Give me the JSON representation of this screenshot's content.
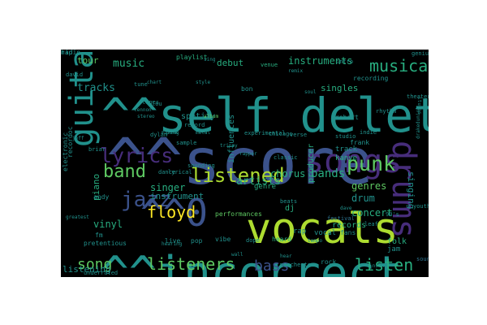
{
  "colors": {
    "figure_bg": "#ffffff",
    "cloud_bg": "#000000",
    "palette": {
      "purple": "#472d7b",
      "indigo": "#3b528b",
      "blue": "#2c728e",
      "teal": "#21918c",
      "green": "#28ae80",
      "lime": "#5ec962",
      "yellowgreen": "#addc30",
      "yellow": "#fde725"
    }
  },
  "words": [
    {
      "text": "^^score",
      "color": "indigo"
    },
    {
      "text": "^^self deletes",
      "color": "teal"
    },
    {
      "text": "^^incorrect",
      "color": "teal"
    },
    {
      "text": "vocals",
      "color": "yellowgreen"
    },
    {
      "text": "^^0",
      "color": "indigo"
    },
    {
      "text": "drums",
      "color": "purple"
    },
    {
      "text": "guitar",
      "color": "teal"
    },
    {
      "text": "songs",
      "color": "purple"
    },
    {
      "text": "lyrics",
      "color": "purple"
    },
    {
      "text": "listened",
      "color": "yellowgreen"
    },
    {
      "text": "punk",
      "color": "lime"
    },
    {
      "text": "jazz",
      "color": "indigo"
    },
    {
      "text": "band",
      "color": "lime"
    },
    {
      "text": "floyd",
      "color": "yellow"
    },
    {
      "text": "listeners",
      "color": "lime"
    },
    {
      "text": "song",
      "color": "lime"
    },
    {
      "text": "listen",
      "color": "green"
    },
    {
      "text": "bass",
      "color": "indigo"
    },
    {
      "text": "music",
      "color": "green"
    },
    {
      "text": "musical",
      "color": "green"
    },
    {
      "text": "instruments",
      "color": "green"
    },
    {
      "text": "bands",
      "color": "green"
    },
    {
      "text": "chorus",
      "color": "green"
    },
    {
      "text": "artists",
      "color": "green"
    },
    {
      "text": "singer",
      "color": "green"
    },
    {
      "text": "concert",
      "color": "green"
    },
    {
      "text": "drum",
      "color": "teal"
    },
    {
      "text": "genres",
      "color": "lime"
    },
    {
      "text": "singing",
      "color": "teal"
    },
    {
      "text": "spotify",
      "color": "teal"
    },
    {
      "text": "tracks",
      "color": "teal"
    },
    {
      "text": "tour",
      "color": "lime"
    },
    {
      "text": "debut",
      "color": "green"
    },
    {
      "text": "piano",
      "color": "green"
    },
    {
      "text": "vinyl",
      "color": "green"
    },
    {
      "text": "listening",
      "color": "teal"
    },
    {
      "text": "records",
      "color": "green"
    },
    {
      "text": "producer",
      "color": "green"
    },
    {
      "text": "kanye",
      "color": "green"
    },
    {
      "text": "genre",
      "color": "green"
    },
    {
      "text": "singles",
      "color": "green"
    },
    {
      "text": "track",
      "color": "teal"
    },
    {
      "text": "instrument",
      "color": "teal"
    },
    {
      "text": "influences",
      "color": "teal"
    },
    {
      "text": "performances",
      "color": "lime"
    },
    {
      "text": "dj",
      "color": "green"
    },
    {
      "text": "rap",
      "color": "teal"
    },
    {
      "text": "vocal",
      "color": "teal"
    },
    {
      "text": "heard",
      "color": "green"
    },
    {
      "text": "playlist",
      "color": "green"
    },
    {
      "text": "venue",
      "color": "green"
    },
    {
      "text": "remix",
      "color": "teal"
    },
    {
      "text": "bon",
      "color": "teal"
    },
    {
      "text": "genius",
      "color": "teal"
    },
    {
      "text": "album",
      "color": "lime"
    },
    {
      "text": "recording",
      "color": "teal"
    },
    {
      "text": "robert",
      "color": "teal"
    },
    {
      "text": "chicago",
      "color": "teal"
    },
    {
      "text": "sounding",
      "color": "teal"
    },
    {
      "text": "tempo",
      "color": "teal"
    },
    {
      "text": "frank",
      "color": "teal"
    },
    {
      "text": "folk",
      "color": "green"
    },
    {
      "text": "jam",
      "color": "teal"
    },
    {
      "text": "pop",
      "color": "teal"
    },
    {
      "text": "vibe",
      "color": "teal"
    },
    {
      "text": "live",
      "color": "teal"
    },
    {
      "text": "fm",
      "color": "teal"
    },
    {
      "text": "pretentious",
      "color": "teal"
    },
    {
      "text": "andy",
      "color": "teal"
    },
    {
      "text": "rock",
      "color": "teal"
    },
    {
      "text": "hear",
      "color": "teal"
    },
    {
      "text": "manchester",
      "color": "teal"
    },
    {
      "text": "electronic",
      "color": "teal"
    },
    {
      "text": "festival",
      "color": "blue"
    },
    {
      "text": "sing",
      "color": "teal"
    },
    {
      "text": "intro",
      "color": "teal"
    },
    {
      "text": "studio",
      "color": "teal"
    },
    {
      "text": "indie",
      "color": "teal"
    },
    {
      "text": "recordoc",
      "color": "teal"
    },
    {
      "text": "youth",
      "color": "teal"
    },
    {
      "text": "drakeduniel",
      "color": "teal"
    },
    {
      "text": "hearing",
      "color": "teal"
    },
    {
      "text": "dance",
      "color": "teal"
    },
    {
      "text": "greatest",
      "color": "teal"
    },
    {
      "text": "theater",
      "color": "teal"
    },
    {
      "text": "itunes",
      "color": "teal"
    },
    {
      "text": "lennon",
      "color": "teal"
    },
    {
      "text": "dope",
      "color": "teal"
    },
    {
      "text": "rhythm",
      "color": "teal"
    },
    {
      "text": "beats",
      "color": "teal"
    },
    {
      "text": "wall",
      "color": "teal"
    },
    {
      "text": "mixing",
      "color": "teal"
    },
    {
      "text": "record",
      "color": "teal"
    },
    {
      "text": "rapper",
      "color": "teal"
    },
    {
      "text": "chart",
      "color": "teal"
    },
    {
      "text": "underrated",
      "color": "teal"
    },
    {
      "text": "briar",
      "color": "teal"
    },
    {
      "text": "david",
      "color": "teal"
    },
    {
      "text": "jeff",
      "color": "teal"
    },
    {
      "text": "90's",
      "color": "teal"
    },
    {
      "text": "fans",
      "color": "teal"
    },
    {
      "text": "sounded",
      "color": "blue"
    },
    {
      "text": "insane",
      "color": "teal"
    },
    {
      "text": "experimental",
      "color": "teal"
    },
    {
      "text": "style",
      "color": "teal"
    },
    {
      "text": "lyrical",
      "color": "teal"
    },
    {
      "text": "dave",
      "color": "teal"
    },
    {
      "text": "leaf",
      "color": "teal"
    },
    {
      "text": "tune",
      "color": "teal"
    },
    {
      "text": "dylan",
      "color": "teal"
    },
    {
      "text": "pink",
      "color": "teal"
    },
    {
      "text": "metal",
      "color": "teal"
    },
    {
      "text": "tunes",
      "color": "teal"
    },
    {
      "text": "stereo",
      "color": "teal"
    },
    {
      "text": "classic",
      "color": "teal"
    },
    {
      "text": "sample",
      "color": "teal"
    },
    {
      "text": "verse",
      "color": "teal"
    },
    {
      "text": "soul",
      "color": "teal"
    },
    {
      "text": "trippy",
      "color": "teal"
    },
    {
      "text": "lou",
      "color": "teal"
    },
    {
      "text": "radio",
      "color": "teal"
    },
    {
      "text": "hip",
      "color": "teal"
    }
  ]
}
